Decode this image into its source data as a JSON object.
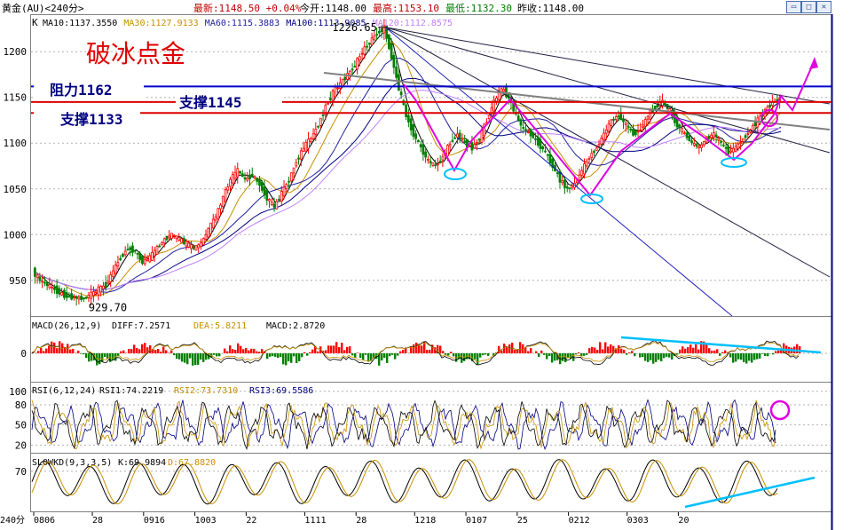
{
  "header": {
    "instrument": "黄金(AU)<240分>",
    "latest": "最新:1148.50 +0.04%",
    "open": "今开:1148.00",
    "high": "最高:1153.10",
    "low": "最低:1132.30",
    "prev_close": "昨收:1148.00"
  },
  "colors": {
    "up": "#ff0000",
    "down": "#008000",
    "ma10": "#000000",
    "ma30": "#c89000",
    "ma60": "#2020a0",
    "ma100": "#000080",
    "ma120": "#c080ff",
    "resistance": "#0000cc",
    "support": "#dd0000",
    "pattern": "#e000e0",
    "ellipse": "#00bfff",
    "trend": "#000080"
  },
  "chart_data": [
    {
      "type": "candlestick",
      "panel": "main",
      "indicator_label": "K",
      "ma_labels": [
        {
          "text": "MA10:1137.3550",
          "color": "#000000"
        },
        {
          "text": "MA30:1127.9133",
          "color": "#c89000"
        },
        {
          "text": "MA60:1115.3883",
          "color": "#2020a0"
        },
        {
          "text": "MA100:1113.9085",
          "color": "#000080"
        },
        {
          "text": "MA120:1112.8575",
          "color": "#c080ff"
        }
      ],
      "title": "破冰点金",
      "y_ticks": [
        950,
        1000,
        1050,
        1100,
        1150,
        1200
      ],
      "ylim": [
        910,
        1240
      ],
      "extremes": [
        {
          "label": "1226.65",
          "value": 1226.65,
          "index": 48
        },
        {
          "label": "929.70",
          "value": 929.7,
          "index": 7
        }
      ],
      "levels": [
        {
          "name": "resistance",
          "label": "阻力1162",
          "value": 1162
        },
        {
          "name": "support-upper",
          "label": "支撑1145",
          "value": 1145
        },
        {
          "name": "support-lower",
          "label": "支撑1133",
          "value": 1133
        }
      ],
      "closes": [
        960,
        950,
        945,
        940,
        935,
        932,
        931,
        930,
        935,
        940,
        945,
        960,
        975,
        985,
        982,
        970,
        975,
        985,
        995,
        1000,
        995,
        990,
        985,
        990,
        1005,
        1020,
        1040,
        1060,
        1070,
        1060,
        1065,
        1055,
        1040,
        1030,
        1045,
        1060,
        1080,
        1095,
        1105,
        1120,
        1140,
        1155,
        1165,
        1175,
        1185,
        1200,
        1210,
        1220,
        1226,
        1195,
        1160,
        1130,
        1110,
        1095,
        1080,
        1075,
        1085,
        1100,
        1110,
        1100,
        1095,
        1105,
        1125,
        1145,
        1160,
        1150,
        1130,
        1115,
        1110,
        1100,
        1090,
        1075,
        1060,
        1050,
        1055,
        1070,
        1085,
        1095,
        1110,
        1125,
        1130,
        1120,
        1110,
        1115,
        1130,
        1140,
        1145,
        1135,
        1120,
        1110,
        1100,
        1095,
        1105,
        1110,
        1100,
        1090,
        1095,
        1105,
        1115,
        1125,
        1135,
        1145,
        1148
      ]
    },
    {
      "type": "bar+line",
      "panel": "macd",
      "label": "MACD(26,12,9)",
      "values_text": [
        "DIFF:7.2571",
        "DEA:5.8211",
        "MACD:2.8720"
      ],
      "y_ticks": [
        0
      ]
    },
    {
      "type": "line",
      "panel": "rsi",
      "label": "RSI(6,12,24)",
      "values_text": [
        "RSI1:74.2219",
        "RSI2:73.7310",
        "RSI3:69.5586"
      ],
      "y_ticks": [
        100,
        80,
        50,
        20
      ],
      "ylim": [
        10,
        105
      ]
    },
    {
      "type": "line",
      "panel": "kd",
      "label": "SLOWKD(9,3,3,5)",
      "values_text": [
        "K:69.9894",
        "D:67.8820"
      ],
      "y_ticks": [
        70
      ],
      "ylim": [
        0,
        100
      ]
    }
  ],
  "x_axis": {
    "unit": "240分",
    "ticks": [
      {
        "label": "0806",
        "i": 0
      },
      {
        "label": "28",
        "i": 8
      },
      {
        "label": "0916",
        "i": 15
      },
      {
        "label": "1003",
        "i": 22
      },
      {
        "label": "22",
        "i": 29
      },
      {
        "label": "1111",
        "i": 37
      },
      {
        "label": "28",
        "i": 44
      },
      {
        "label": "1218",
        "i": 52
      },
      {
        "label": "0107",
        "i": 59
      },
      {
        "label": "25",
        "i": 66
      },
      {
        "label": "0212",
        "i": 73
      },
      {
        "label": "0303",
        "i": 81
      },
      {
        "label": "20",
        "i": 88
      }
    ]
  }
}
